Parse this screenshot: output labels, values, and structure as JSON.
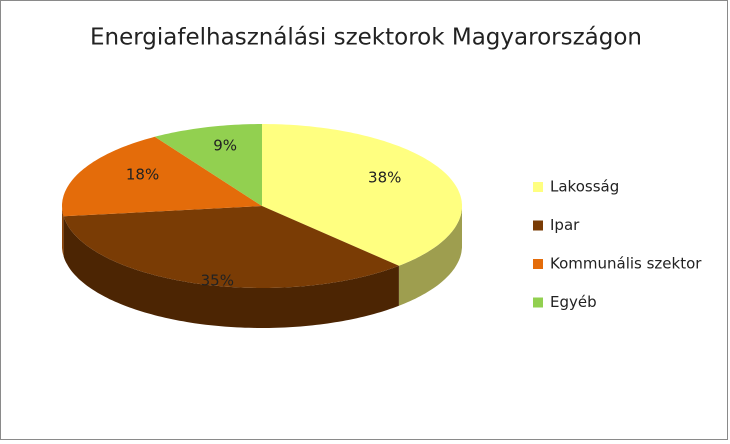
{
  "chart_data": {
    "type": "pie",
    "title": "Energiafelhasználási szektorok Magyarországon",
    "categories": [
      "Lakosság",
      "Ipar",
      "Kommunális szektor",
      "Egyéb"
    ],
    "values": [
      38,
      35,
      18,
      9
    ],
    "value_labels": [
      "38%",
      "35%",
      "18%",
      "9%"
    ],
    "colors": [
      "#ffff80",
      "#7a3c05",
      "#e46c0a",
      "#92d050"
    ],
    "legend": "right"
  }
}
